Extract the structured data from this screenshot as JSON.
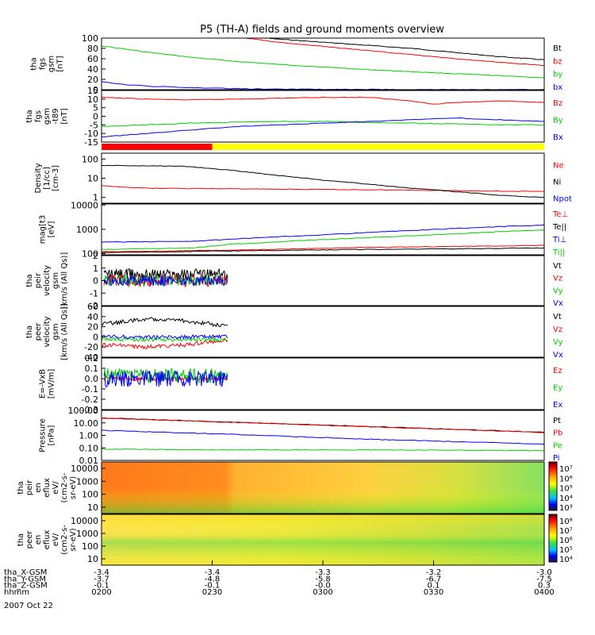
{
  "title": "P5 (TH-A) fields and ground moments overview",
  "colors": {
    "black": "#000000",
    "red": "#ff0000",
    "green": "#00d000",
    "blue": "#0000ff",
    "yellow": "#ffff00"
  },
  "chart_data": [
    {
      "type": "line",
      "panel": "fgs-gsm",
      "ylabel": [
        "tha",
        "fgs",
        "gsm",
        "[nT]"
      ],
      "yticks": [
        "100",
        "80",
        "60",
        "40",
        "20",
        "0"
      ],
      "ylim": [
        0,
        100
      ],
      "series": [
        {
          "name": "Bt",
          "color": "black",
          "x": [
            0.3,
            0.4,
            0.5,
            0.6,
            0.7,
            0.8,
            0.9,
            1.0
          ],
          "y": [
            105,
            98,
            92,
            86,
            80,
            72,
            64,
            58
          ]
        },
        {
          "name": "bz",
          "color": "red",
          "x": [
            0.3,
            0.4,
            0.5,
            0.6,
            0.7,
            0.8,
            0.9,
            1.0
          ],
          "y": [
            103,
            92,
            84,
            76,
            68,
            60,
            53,
            47
          ]
        },
        {
          "name": "by",
          "color": "green",
          "x": [
            0,
            0.1,
            0.2,
            0.3,
            0.4,
            0.5,
            0.6,
            0.7,
            0.8,
            0.9,
            1.0
          ],
          "y": [
            85,
            73,
            63,
            55,
            49,
            44,
            39,
            35,
            31,
            27,
            23
          ]
        },
        {
          "name": "bx",
          "color": "blue",
          "x": [
            0,
            0.05,
            0.1,
            0.2,
            0.3,
            0.4,
            0.6,
            0.8,
            1.0
          ],
          "y": [
            15,
            10,
            7,
            4,
            2,
            1,
            0.5,
            0.2,
            0
          ]
        }
      ]
    },
    {
      "type": "line",
      "panel": "fgs-gsm-t89",
      "ylabel": [
        "tha",
        "fgs",
        "gsm",
        "-t89",
        "[nT]"
      ],
      "yticks": [
        "15",
        "10",
        "5",
        "0",
        "-5",
        "-10",
        "-15"
      ],
      "ylim": [
        -15,
        15
      ],
      "series": [
        {
          "name": "Bz",
          "color": "red",
          "x": [
            0,
            0.1,
            0.2,
            0.3,
            0.4,
            0.5,
            0.6,
            0.7,
            0.75,
            0.8,
            0.9,
            1.0
          ],
          "y": [
            11,
            10,
            9.5,
            10,
            10.5,
            11,
            11,
            9,
            7,
            8,
            9,
            8
          ]
        },
        {
          "name": "By",
          "color": "green",
          "x": [
            0,
            0.1,
            0.2,
            0.3,
            0.4,
            0.5,
            0.6,
            0.7,
            0.8,
            0.9,
            1.0
          ],
          "y": [
            -6,
            -5,
            -4,
            -3.5,
            -3,
            -3,
            -3.5,
            -4,
            -4.5,
            -5,
            -5
          ]
        },
        {
          "name": "Bx",
          "color": "blue",
          "x": [
            0,
            0.1,
            0.2,
            0.3,
            0.4,
            0.5,
            0.6,
            0.7,
            0.8,
            0.9,
            1.0
          ],
          "y": [
            -12,
            -10,
            -8,
            -6,
            -5,
            -4,
            -3,
            -2,
            -1,
            -2,
            -3
          ]
        }
      ]
    },
    {
      "type": "mode-bar",
      "panel": "mode",
      "segments": [
        {
          "from": 0,
          "to": 0.25,
          "color": "red"
        },
        {
          "from": 0.25,
          "to": 1.0,
          "color": "yellow"
        }
      ]
    },
    {
      "type": "line",
      "panel": "density",
      "log": true,
      "ylabel": [
        "Density",
        "[1/cc]",
        "[cm-3]"
      ],
      "yticks": [
        "100",
        "10",
        "1"
      ],
      "ylim": [
        0.5,
        200
      ],
      "series": [
        {
          "name": "Ne",
          "color": "red",
          "x": [
            0,
            0.1,
            0.3,
            0.5,
            0.7,
            0.85,
            1.0
          ],
          "y": [
            4,
            3,
            2.8,
            2.6,
            2.4,
            2.2,
            2
          ]
        },
        {
          "name": "Ni",
          "color": "black",
          "x": [
            0,
            0.1,
            0.2,
            0.3,
            0.4,
            0.5,
            0.6,
            0.7,
            0.8,
            0.9,
            1.0
          ],
          "y": [
            45,
            45,
            40,
            25,
            14,
            8,
            5,
            3,
            2,
            1.3,
            1
          ]
        },
        {
          "name": "Npot",
          "color": "blue",
          "x": [],
          "y": []
        }
      ]
    },
    {
      "type": "line",
      "panel": "temperature",
      "log": true,
      "ylabel": [
        "mag[t3",
        "[eV]"
      ],
      "yticks": [
        "10000",
        "1000",
        "100"
      ],
      "ylim": [
        90,
        11000
      ],
      "series": [
        {
          "name": "Te⊥",
          "color": "red",
          "x": [
            0,
            0.3,
            0.6,
            1.0
          ],
          "y": [
            120,
            140,
            180,
            220
          ]
        },
        {
          "name": "Te||",
          "color": "black",
          "x": [
            0,
            0.3,
            0.6,
            1.0
          ],
          "y": [
            110,
            130,
            150,
            170
          ]
        },
        {
          "name": "Ti⊥",
          "color": "blue",
          "x": [
            0,
            0.2,
            0.3,
            0.5,
            0.7,
            0.9,
            1.0
          ],
          "y": [
            300,
            320,
            400,
            600,
            900,
            1300,
            1500
          ]
        },
        {
          "name": "Ti||",
          "color": "green",
          "x": [
            0,
            0.2,
            0.3,
            0.5,
            0.7,
            0.9,
            1.0
          ],
          "y": [
            150,
            170,
            250,
            380,
            550,
            800,
            950
          ]
        }
      ]
    },
    {
      "type": "line",
      "panel": "peir-velocity",
      "ylabel": [
        "tha",
        "peir",
        "velocity",
        "gsm",
        "[km/s (All Qs)]"
      ],
      "yticks": [
        "2",
        "1",
        "0",
        "-1",
        "-2"
      ],
      "ylim": [
        -2,
        2
      ],
      "x_end": 0.285,
      "series": [
        {
          "name": "Vt",
          "color": "black",
          "center": 0.5,
          "noise": 0.45
        },
        {
          "name": "Vz",
          "color": "red",
          "center": 0,
          "noise": 0.5
        },
        {
          "name": "Vy",
          "color": "green",
          "center": 0,
          "noise": 0.45
        },
        {
          "name": "Vx",
          "color": "blue",
          "center": 0,
          "noise": 0.4
        }
      ]
    },
    {
      "type": "line",
      "panel": "peer-velocity",
      "ylabel": [
        "tha",
        "peer",
        "velocity",
        "gsm",
        "[km/s (All Qs)]"
      ],
      "yticks": [
        "60",
        "40",
        "20",
        "0",
        "-20",
        "-40"
      ],
      "ylim": [
        -40,
        60
      ],
      "x_end": 0.285,
      "series": [
        {
          "name": "Vt",
          "color": "black",
          "x": [
            0,
            0.05,
            0.1,
            0.15,
            0.2,
            0.25,
            0.285
          ],
          "y": [
            25,
            30,
            35,
            35,
            30,
            25,
            20
          ]
        },
        {
          "name": "Vz",
          "color": "red",
          "x": [
            0,
            0.1,
            0.2,
            0.285
          ],
          "y": [
            -15,
            -20,
            -15,
            -5
          ]
        },
        {
          "name": "Vy",
          "color": "green",
          "x": [
            0,
            0.1,
            0.2,
            0.285
          ],
          "y": [
            -5,
            -5,
            -5,
            -5
          ]
        },
        {
          "name": "Vx",
          "color": "blue",
          "x": [
            0,
            0.1,
            0.2,
            0.285
          ],
          "y": [
            0,
            0,
            0,
            0
          ]
        }
      ]
    },
    {
      "type": "line",
      "panel": "e-field",
      "ylabel": [
        "E=-VxB",
        "[mV/m]"
      ],
      "yticks": [
        "0.2",
        "0.1",
        "0.0",
        "-0.1",
        "-0.2",
        "-0.3"
      ],
      "ylim": [
        -0.3,
        0.2
      ],
      "x_end": 0.285,
      "series": [
        {
          "name": "Ez",
          "color": "red",
          "center": 0,
          "noise": 0.02
        },
        {
          "name": "Ey",
          "color": "green",
          "center": 0.03,
          "noise": 0.07
        },
        {
          "name": "Ex",
          "color": "blue",
          "center": 0,
          "noise": 0.08
        }
      ]
    },
    {
      "type": "line",
      "panel": "pressure",
      "log": true,
      "ylabel": [
        "Pressure",
        "[nPa]"
      ],
      "yticks": [
        "100.00",
        "10.00",
        "1.00",
        "0.10",
        "0.01"
      ],
      "ylim": [
        0.01,
        100
      ],
      "series": [
        {
          "name": "Pt",
          "color": "black",
          "x": [
            0,
            1.0
          ],
          "y": [
            25,
            1.8
          ]
        },
        {
          "name": "Pb",
          "color": "red",
          "x": [
            0,
            1.0
          ],
          "y": [
            24,
            1.7
          ]
        },
        {
          "name": "Pe",
          "color": "green",
          "x": [
            0,
            0.3,
            0.6,
            1.0
          ],
          "y": [
            0.08,
            0.07,
            0.07,
            0.06
          ]
        },
        {
          "name": "Pi",
          "color": "blue",
          "x": [
            0,
            0.3,
            0.6,
            1.0
          ],
          "y": [
            2.5,
            1.2,
            0.5,
            0.2
          ]
        }
      ]
    },
    {
      "type": "heatmap",
      "panel": "peir-eflux",
      "ylabel": [
        "tha",
        "peir",
        "en",
        "eflux",
        "eV/",
        "(cm2-s-",
        "sr-eV)"
      ],
      "yticks": [
        "10000",
        "1000",
        "100",
        "10"
      ],
      "colorbar_ticks": [
        "10⁷",
        "10⁶",
        "10⁵",
        "10⁴",
        "10³"
      ]
    },
    {
      "type": "heatmap",
      "panel": "peer-eflux",
      "ylabel": [
        "tha",
        "peer",
        "en",
        "eflux",
        "eV/",
        "(cm2-s-",
        "sr-eV)"
      ],
      "yticks": [
        "10000",
        "1000",
        "100",
        "10"
      ],
      "colorbar_ticks": [
        "10⁸",
        "10⁷",
        "10⁶",
        "10⁵",
        "10⁴"
      ]
    }
  ],
  "x_axis": {
    "rows": [
      {
        "label": "tha_X-GSM",
        "values": [
          "-3.4",
          "-3.4",
          "-3.3",
          "-3.2",
          "-3.0"
        ]
      },
      {
        "label": "tha_Y-GSM",
        "values": [
          "-3.7",
          "-4.8",
          "-5.8",
          "-6.7",
          "-7.5"
        ]
      },
      {
        "label": "tha_Z-GSM",
        "values": [
          "-0.1",
          "-0.1",
          "-0.0",
          "0.1",
          "0.3"
        ]
      },
      {
        "label": "hhmm",
        "values": [
          "0200",
          "0230",
          "0300",
          "0330",
          "0400"
        ]
      }
    ],
    "date": "2007 Oct 22"
  }
}
